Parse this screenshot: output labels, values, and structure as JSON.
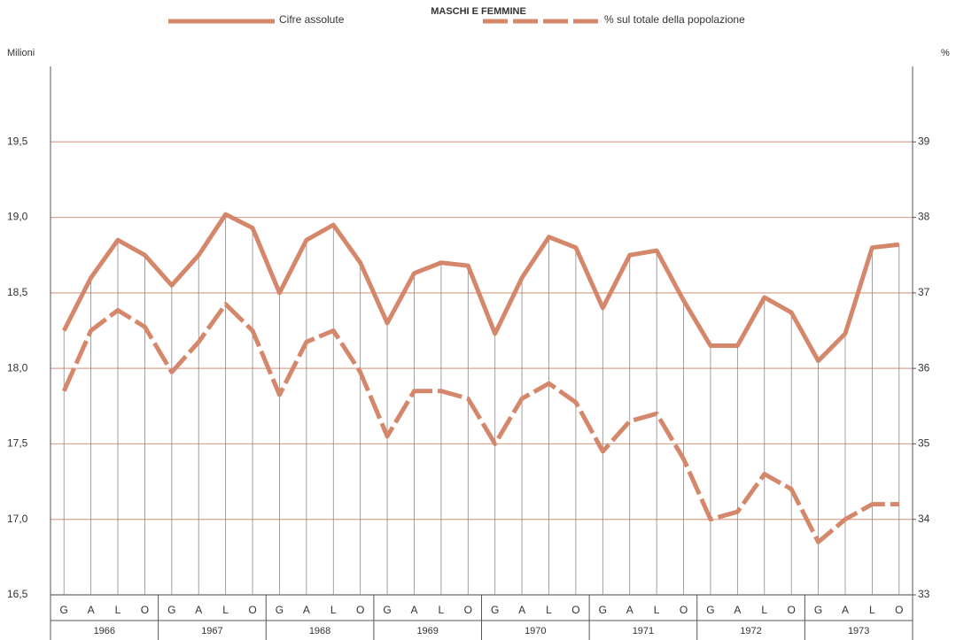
{
  "chart_data": {
    "type": "line",
    "title": "MASCHI E FEMMINE",
    "y_label": "Milioni",
    "y2_label": "%",
    "categories": [
      "G",
      "A",
      "L",
      "O",
      "G",
      "A",
      "L",
      "O",
      "G",
      "A",
      "L",
      "O",
      "G",
      "A",
      "L",
      "O",
      "G",
      "A",
      "L",
      "O",
      "G",
      "A",
      "L",
      "O",
      "G",
      "A",
      "L",
      "O",
      "G",
      "A",
      "L",
      "O"
    ],
    "years": [
      "1966",
      "1967",
      "1968",
      "1969",
      "1970",
      "1971",
      "1972",
      "1973"
    ],
    "series": [
      {
        "name": "Cifre assolute",
        "color": "#d4876a",
        "axis": "y",
        "values": [
          18.25,
          18.6,
          18.85,
          18.75,
          18.55,
          18.75,
          19.02,
          18.93,
          18.5,
          18.85,
          18.95,
          18.7,
          18.3,
          18.63,
          18.7,
          18.68,
          18.23,
          18.6,
          18.87,
          18.8,
          18.4,
          18.75,
          18.78,
          18.45,
          18.15,
          18.15,
          18.47,
          18.37,
          18.05,
          18.23,
          18.8,
          18.82
        ]
      },
      {
        "name": "% sul totale della popolazione",
        "color": "#d4876a",
        "axis": "y2",
        "dashed": true,
        "values": [
          35.7,
          36.5,
          36.77,
          36.55,
          35.95,
          36.35,
          36.85,
          36.5,
          35.65,
          36.35,
          36.5,
          35.95,
          35.1,
          35.7,
          35.7,
          35.6,
          35.0,
          35.6,
          35.8,
          35.55,
          34.9,
          35.3,
          35.4,
          34.8,
          34.0,
          34.1,
          34.6,
          34.4,
          33.7,
          34.0,
          34.2,
          34.2
        ]
      }
    ],
    "ylim": [
      16.5,
      20
    ],
    "yticks": [
      {
        "value": 16.5,
        "label": "16,5"
      },
      {
        "value": 17,
        "label": "17,0"
      },
      {
        "value": 17.5,
        "label": "17,5"
      },
      {
        "value": 18,
        "label": "18,0"
      },
      {
        "value": 18.5,
        "label": "18,5"
      },
      {
        "value": 19,
        "label": "19,0"
      },
      {
        "value": 19.5,
        "label": "19,5"
      }
    ],
    "y2lim": [
      33,
      40
    ],
    "y2ticks": [
      33,
      34,
      35,
      36,
      37,
      38,
      39
    ],
    "grid": true
  }
}
